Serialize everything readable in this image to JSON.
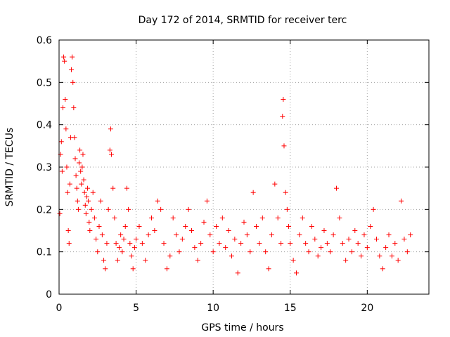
{
  "chart_data": {
    "type": "scatter",
    "title": "Day 172 of 2014, SRMTID for receiver terc",
    "xlabel": "GPS time / hours",
    "ylabel": "SRMTID / TECUs",
    "xlim": [
      0,
      24
    ],
    "ylim": [
      0,
      0.6
    ],
    "x_ticks": [
      0,
      5,
      10,
      15,
      20
    ],
    "x_tick_labels": [
      "0",
      "5",
      "10",
      "15",
      "20"
    ],
    "y_ticks": [
      0,
      0.1,
      0.2,
      0.3,
      0.4,
      0.5,
      0.6
    ],
    "y_tick_labels": [
      "0",
      "0.1",
      "0.2",
      "0.3",
      "0.4",
      "0.5",
      "0.6"
    ],
    "grid": true,
    "marker": "+",
    "color": "#ff0000",
    "series": [
      {
        "name": "SRMTID",
        "points": [
          [
            0.05,
            0.19
          ],
          [
            0.1,
            0.33
          ],
          [
            0.15,
            0.36
          ],
          [
            0.2,
            0.29
          ],
          [
            0.25,
            0.44
          ],
          [
            0.3,
            0.56
          ],
          [
            0.35,
            0.55
          ],
          [
            0.4,
            0.46
          ],
          [
            0.45,
            0.39
          ],
          [
            0.5,
            0.3
          ],
          [
            0.55,
            0.24
          ],
          [
            0.6,
            0.15
          ],
          [
            0.65,
            0.12
          ],
          [
            0.7,
            0.26
          ],
          [
            0.75,
            0.37
          ],
          [
            0.8,
            0.53
          ],
          [
            0.85,
            0.56
          ],
          [
            0.9,
            0.5
          ],
          [
            0.95,
            0.44
          ],
          [
            1.0,
            0.37
          ],
          [
            1.05,
            0.32
          ],
          [
            1.1,
            0.28
          ],
          [
            1.15,
            0.25
          ],
          [
            1.2,
            0.22
          ],
          [
            1.25,
            0.2
          ],
          [
            1.3,
            0.31
          ],
          [
            1.35,
            0.34
          ],
          [
            1.4,
            0.29
          ],
          [
            1.45,
            0.26
          ],
          [
            1.5,
            0.3
          ],
          [
            1.55,
            0.33
          ],
          [
            1.6,
            0.27
          ],
          [
            1.65,
            0.24
          ],
          [
            1.7,
            0.21
          ],
          [
            1.75,
            0.19
          ],
          [
            1.8,
            0.23
          ],
          [
            1.85,
            0.25
          ],
          [
            1.9,
            0.22
          ],
          [
            1.95,
            0.17
          ],
          [
            2.0,
            0.15
          ],
          [
            2.1,
            0.2
          ],
          [
            2.2,
            0.24
          ],
          [
            2.3,
            0.18
          ],
          [
            2.4,
            0.13
          ],
          [
            2.5,
            0.1
          ],
          [
            2.6,
            0.16
          ],
          [
            2.7,
            0.22
          ],
          [
            2.8,
            0.14
          ],
          [
            2.9,
            0.08
          ],
          [
            3.0,
            0.06
          ],
          [
            3.1,
            0.12
          ],
          [
            3.2,
            0.2
          ],
          [
            3.3,
            0.34
          ],
          [
            3.35,
            0.39
          ],
          [
            3.4,
            0.33
          ],
          [
            3.5,
            0.25
          ],
          [
            3.6,
            0.18
          ],
          [
            3.7,
            0.12
          ],
          [
            3.8,
            0.08
          ],
          [
            3.9,
            0.11
          ],
          [
            4.0,
            0.14
          ],
          [
            4.1,
            0.1
          ],
          [
            4.2,
            0.13
          ],
          [
            4.3,
            0.16
          ],
          [
            4.4,
            0.25
          ],
          [
            4.5,
            0.2
          ],
          [
            4.6,
            0.12
          ],
          [
            4.7,
            0.09
          ],
          [
            4.8,
            0.06
          ],
          [
            4.9,
            0.11
          ],
          [
            5.0,
            0.13
          ],
          [
            5.2,
            0.16
          ],
          [
            5.4,
            0.12
          ],
          [
            5.6,
            0.08
          ],
          [
            5.8,
            0.14
          ],
          [
            6.0,
            0.18
          ],
          [
            6.2,
            0.15
          ],
          [
            6.4,
            0.22
          ],
          [
            6.6,
            0.2
          ],
          [
            6.8,
            0.12
          ],
          [
            7.0,
            0.06
          ],
          [
            7.2,
            0.09
          ],
          [
            7.4,
            0.18
          ],
          [
            7.6,
            0.14
          ],
          [
            7.8,
            0.1
          ],
          [
            8.0,
            0.13
          ],
          [
            8.2,
            0.16
          ],
          [
            8.4,
            0.2
          ],
          [
            8.6,
            0.15
          ],
          [
            8.8,
            0.11
          ],
          [
            9.0,
            0.08
          ],
          [
            9.2,
            0.12
          ],
          [
            9.4,
            0.17
          ],
          [
            9.6,
            0.22
          ],
          [
            9.8,
            0.14
          ],
          [
            10.0,
            0.1
          ],
          [
            10.2,
            0.16
          ],
          [
            10.4,
            0.12
          ],
          [
            10.6,
            0.18
          ],
          [
            10.8,
            0.11
          ],
          [
            11.0,
            0.15
          ],
          [
            11.2,
            0.09
          ],
          [
            11.4,
            0.13
          ],
          [
            11.6,
            0.05
          ],
          [
            11.8,
            0.12
          ],
          [
            12.0,
            0.17
          ],
          [
            12.2,
            0.14
          ],
          [
            12.4,
            0.1
          ],
          [
            12.6,
            0.24
          ],
          [
            12.8,
            0.16
          ],
          [
            13.0,
            0.12
          ],
          [
            13.2,
            0.18
          ],
          [
            13.4,
            0.1
          ],
          [
            13.6,
            0.06
          ],
          [
            13.8,
            0.14
          ],
          [
            14.0,
            0.26
          ],
          [
            14.2,
            0.18
          ],
          [
            14.4,
            0.12
          ],
          [
            14.5,
            0.42
          ],
          [
            14.55,
            0.46
          ],
          [
            14.6,
            0.35
          ],
          [
            14.7,
            0.24
          ],
          [
            14.8,
            0.2
          ],
          [
            14.9,
            0.16
          ],
          [
            15.0,
            0.12
          ],
          [
            15.2,
            0.08
          ],
          [
            15.4,
            0.05
          ],
          [
            15.6,
            0.14
          ],
          [
            15.8,
            0.18
          ],
          [
            16.0,
            0.12
          ],
          [
            16.2,
            0.1
          ],
          [
            16.4,
            0.16
          ],
          [
            16.6,
            0.13
          ],
          [
            16.8,
            0.09
          ],
          [
            17.0,
            0.11
          ],
          [
            17.2,
            0.15
          ],
          [
            17.4,
            0.12
          ],
          [
            17.6,
            0.1
          ],
          [
            17.8,
            0.14
          ],
          [
            18.0,
            0.25
          ],
          [
            18.2,
            0.18
          ],
          [
            18.4,
            0.12
          ],
          [
            18.6,
            0.08
          ],
          [
            18.8,
            0.13
          ],
          [
            19.0,
            0.1
          ],
          [
            19.2,
            0.15
          ],
          [
            19.4,
            0.12
          ],
          [
            19.6,
            0.09
          ],
          [
            19.8,
            0.14
          ],
          [
            20.0,
            0.11
          ],
          [
            20.2,
            0.16
          ],
          [
            20.4,
            0.2
          ],
          [
            20.6,
            0.13
          ],
          [
            20.8,
            0.09
          ],
          [
            21.0,
            0.06
          ],
          [
            21.2,
            0.11
          ],
          [
            21.4,
            0.14
          ],
          [
            21.6,
            0.09
          ],
          [
            21.8,
            0.12
          ],
          [
            22.0,
            0.08
          ],
          [
            22.2,
            0.22
          ],
          [
            22.4,
            0.13
          ],
          [
            22.6,
            0.1
          ],
          [
            22.8,
            0.14
          ]
        ]
      }
    ]
  }
}
